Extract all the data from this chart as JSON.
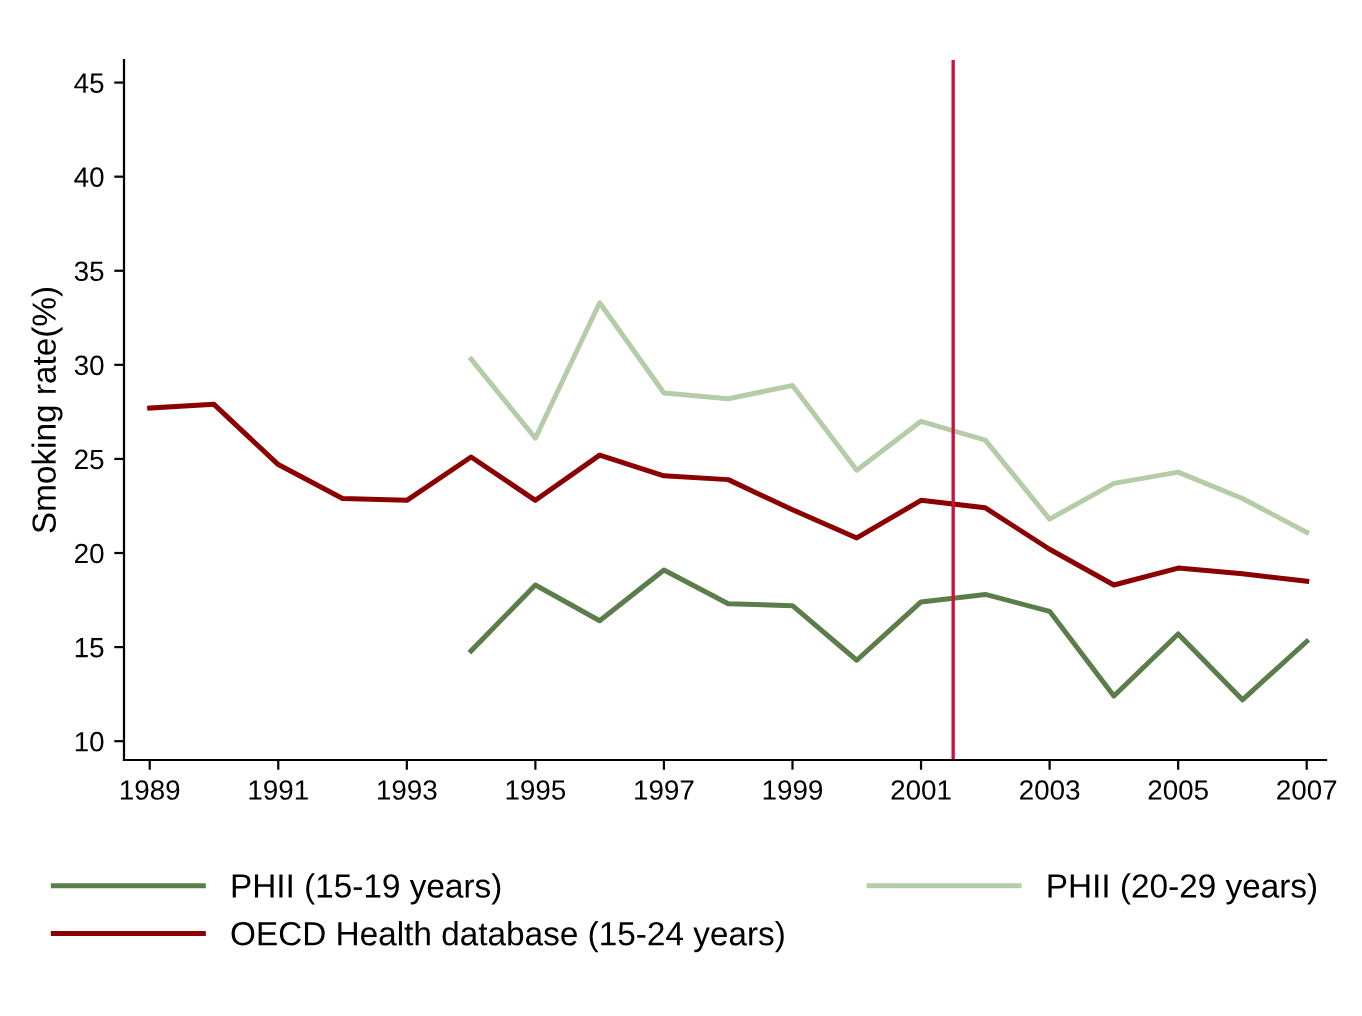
{
  "chart_data": {
    "type": "line",
    "ylabel": "Smoking rate(%)",
    "legend": "bottom",
    "grid": false,
    "line_style": "solid",
    "marker": "none",
    "xlim": [
      1988.6,
      2007.3
    ],
    "xticks": [
      1989,
      1991,
      1993,
      1995,
      1997,
      1999,
      2001,
      2003,
      2005,
      2007
    ],
    "ylim": [
      9,
      46.2
    ],
    "yticks": [
      10,
      15,
      20,
      25,
      30,
      35,
      40,
      45
    ],
    "ref_lines": [
      {
        "axis": "x",
        "value": 2001.5,
        "color": "#d0103a"
      }
    ],
    "series": [
      {
        "name": "PHII (15-19 years)",
        "color": "#5a7d4a",
        "x": [
          1994,
          1995,
          1996,
          1997,
          1998,
          1999,
          2000,
          2001,
          2002,
          2003,
          2004,
          2005,
          2006,
          2007
        ],
        "values": [
          14.8,
          18.3,
          16.4,
          19.1,
          17.3,
          17.2,
          14.3,
          17.4,
          17.8,
          16.9,
          12.4,
          15.7,
          12.2,
          15.3
        ]
      },
      {
        "name": "PHII (20-29 years)",
        "color": "#b5cca8",
        "x": [
          1994,
          1995,
          1996,
          1997,
          1998,
          1999,
          2000,
          2001,
          2002,
          2003,
          2004,
          2005,
          2006,
          2007
        ],
        "values": [
          30.3,
          26.1,
          33.3,
          28.5,
          28.2,
          28.9,
          24.4,
          27.0,
          26.0,
          21.8,
          23.7,
          24.3,
          22.9,
          21.1
        ]
      },
      {
        "name": "OECD Health database (15-24 years)",
        "color": "#8b0000",
        "x": [
          1989,
          1990,
          1991,
          1992,
          1993,
          1994,
          1995,
          1996,
          1997,
          1998,
          1999,
          2000,
          2001,
          2002,
          2003,
          2004,
          2005,
          2006,
          2007
        ],
        "values": [
          27.7,
          27.9,
          24.7,
          22.9,
          22.8,
          25.1,
          22.8,
          25.2,
          24.1,
          23.9,
          22.3,
          20.8,
          22.8,
          22.4,
          20.2,
          18.3,
          19.2,
          18.9,
          18.5
        ]
      }
    ]
  }
}
